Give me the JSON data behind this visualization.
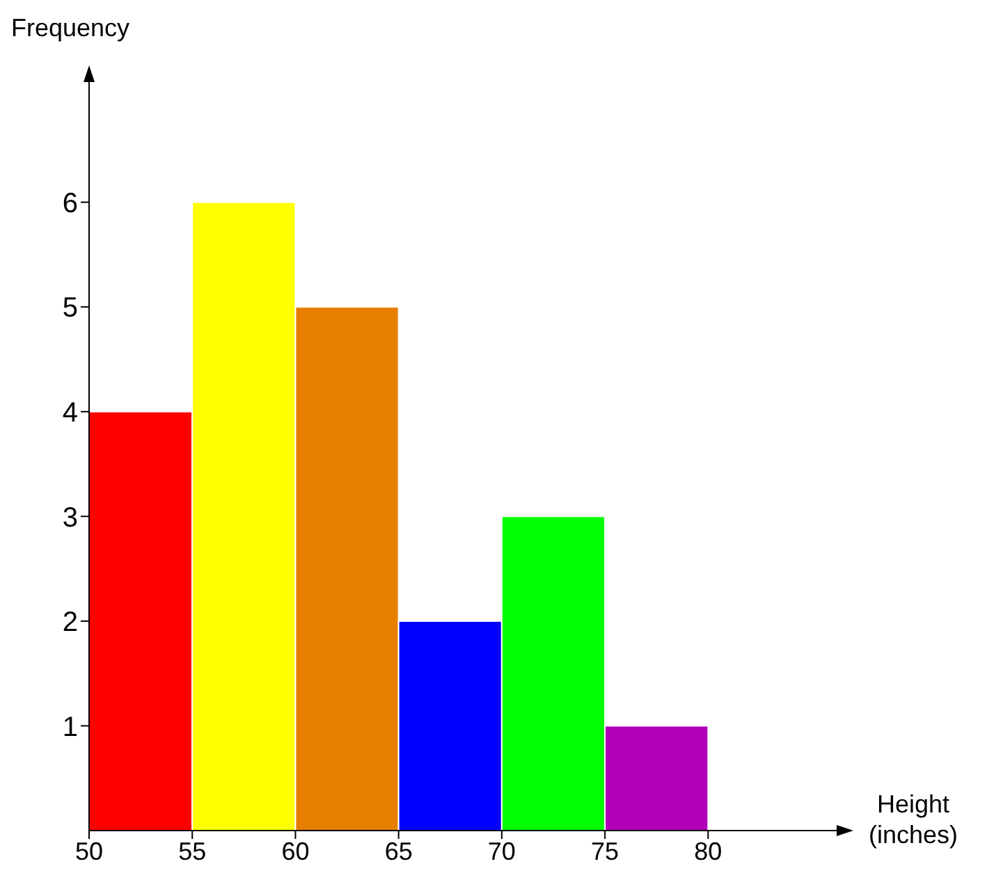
{
  "chart_data": {
    "type": "histogram",
    "xlabel": "Height (inches)",
    "ylabel": "Frequency",
    "bins": [
      50,
      55,
      60,
      65,
      70,
      75,
      80
    ],
    "values": [
      4,
      6,
      5,
      2,
      3,
      1
    ],
    "colors": [
      "#ff0000",
      "#ffff00",
      "#e67e00",
      "#0000ff",
      "#00ff00",
      "#b000b8"
    ],
    "xlim": [
      50,
      86.5
    ],
    "xticks": [
      50,
      55,
      60,
      65,
      70,
      75,
      80
    ],
    "ylim": [
      0,
      7.2
    ],
    "yticks": [
      1,
      2,
      3,
      4,
      5,
      6
    ],
    "grid": false,
    "legend": false
  }
}
